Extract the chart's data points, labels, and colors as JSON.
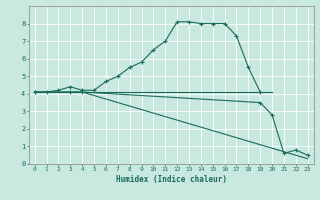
{
  "xlabel": "Humidex (Indice chaleur)",
  "background_color": "#c8e8e0",
  "grid_color": "#ffffff",
  "line_color": "#1a6b5a",
  "xlim": [
    -0.5,
    23.5
  ],
  "ylim": [
    0,
    9
  ],
  "xticks": [
    0,
    1,
    2,
    3,
    4,
    5,
    6,
    7,
    8,
    9,
    10,
    11,
    12,
    13,
    14,
    15,
    16,
    17,
    18,
    19,
    20,
    21,
    22,
    23
  ],
  "yticks": [
    0,
    1,
    2,
    3,
    4,
    5,
    6,
    7,
    8
  ],
  "line1_x": [
    0,
    1,
    2,
    3,
    4,
    5,
    6,
    7,
    8,
    9,
    10,
    11,
    12,
    13,
    14,
    15,
    16,
    17,
    18,
    19
  ],
  "line1_y": [
    4.1,
    4.1,
    4.2,
    4.4,
    4.2,
    4.2,
    4.7,
    5.0,
    5.5,
    5.8,
    6.5,
    7.0,
    8.1,
    8.1,
    8.0,
    8.0,
    8.0,
    7.3,
    5.5,
    4.1
  ],
  "line2_x": [
    0,
    1,
    2,
    3,
    4,
    5,
    6,
    7,
    8,
    9,
    10,
    11,
    12,
    13,
    14,
    15,
    16,
    17,
    18,
    19,
    20
  ],
  "line2_y": [
    4.1,
    4.1,
    4.1,
    4.1,
    4.1,
    4.1,
    4.1,
    4.1,
    4.1,
    4.1,
    4.1,
    4.1,
    4.1,
    4.1,
    4.1,
    4.1,
    4.1,
    4.1,
    4.1,
    4.1,
    4.1
  ],
  "line3_x": [
    0,
    3,
    4,
    19,
    20,
    21,
    22,
    23
  ],
  "line3_y": [
    4.1,
    4.1,
    4.1,
    3.5,
    2.8,
    0.6,
    0.8,
    0.5
  ],
  "line4_x": [
    0,
    3,
    4,
    5,
    6,
    7,
    8,
    9,
    10,
    11,
    12,
    13,
    14,
    15,
    16,
    17,
    18,
    19,
    20,
    21,
    22,
    23
  ],
  "line4_y": [
    4.1,
    4.1,
    4.1,
    3.9,
    3.7,
    3.5,
    3.3,
    3.1,
    2.9,
    2.7,
    2.5,
    2.3,
    2.1,
    1.9,
    1.7,
    1.5,
    1.3,
    1.1,
    0.9,
    0.7,
    0.5,
    0.3
  ]
}
